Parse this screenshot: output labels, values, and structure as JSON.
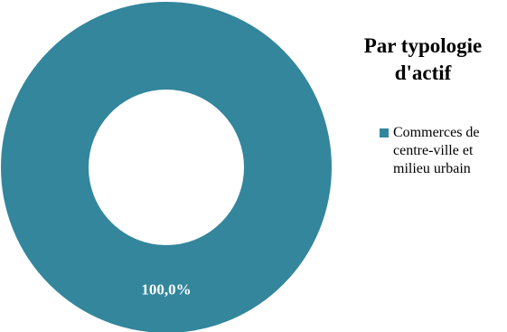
{
  "chart_data": {
    "type": "pie",
    "title": "Par typologie d'actif",
    "categories": [
      "Commerces de centre-ville et milieu urbain"
    ],
    "values": [
      100.0
    ],
    "data_labels": [
      "100,0%"
    ],
    "colors": [
      "#33869c"
    ],
    "legend_position": "right",
    "style": "donut"
  }
}
